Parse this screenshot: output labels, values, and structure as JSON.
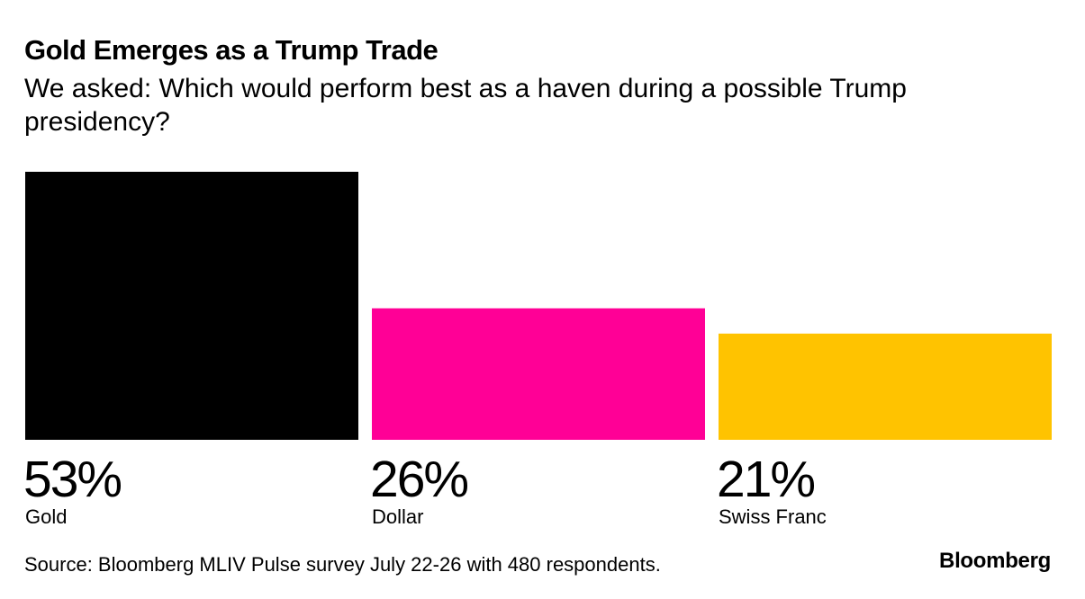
{
  "chart_data": {
    "type": "bar",
    "title": "Gold Emerges as a Trump Trade",
    "subtitle": "We asked: Which would perform best as a haven during a possible Trump presidency?",
    "categories": [
      "Gold",
      "Dollar",
      "Swiss Franc"
    ],
    "values": [
      53,
      26,
      21
    ],
    "value_labels": [
      "53%",
      "26%",
      "21%"
    ],
    "colors": [
      "#000000",
      "#ff0096",
      "#ffc300"
    ],
    "ylim": [
      0,
      53
    ],
    "xlabel": "",
    "ylabel": "",
    "grid": false,
    "legend": "none"
  },
  "footer": {
    "source": "Source: Bloomberg MLIV Pulse survey July 22-26 with 480 respondents.",
    "brand": "Bloomberg"
  }
}
